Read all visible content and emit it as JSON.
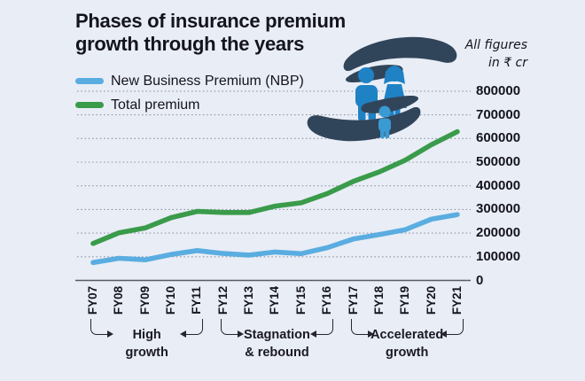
{
  "title": {
    "line1": "Phases of insurance premium",
    "line2": "growth through the years"
  },
  "unit_note": {
    "line1": "All figures",
    "line2": "in ₹ cr"
  },
  "legend": {
    "items": [
      {
        "label": "New Business Premium (NBP)",
        "color": "#5aade0"
      },
      {
        "label": "Total premium",
        "color": "#3a9b4a"
      }
    ]
  },
  "icon": {
    "name": "hands-protecting-family",
    "hand_color": "#31455a",
    "adult_color": "#1f82c5",
    "child_color": "#3a9ad2"
  },
  "chart_data": {
    "type": "line",
    "title": "Phases of insurance premium growth through the years",
    "unit": "₹ cr",
    "categories": [
      "FY07",
      "FY08",
      "FY09",
      "FY10",
      "FY11",
      "FY12",
      "FY13",
      "FY14",
      "FY15",
      "FY16",
      "FY17",
      "FY18",
      "FY19",
      "FY20",
      "FY21"
    ],
    "series": [
      {
        "name": "New Business Premium (NBP)",
        "color": "#5aade0",
        "values": [
          75600,
          93700,
          87300,
          109900,
          126400,
          113900,
          107000,
          120300,
          113100,
          138700,
          175000,
          193900,
          214700,
          258900,
          278300
        ]
      },
      {
        "name": "Total premium",
        "color": "#3a9b4a",
        "values": [
          156100,
          201400,
          221800,
          265400,
          291600,
          287100,
          287200,
          314300,
          328100,
          366900,
          418500,
          458800,
          508100,
          573300,
          628700
        ]
      }
    ],
    "ylim": [
      0,
      800000
    ],
    "yticks": [
      0,
      100000,
      200000,
      300000,
      400000,
      500000,
      600000,
      700000,
      800000
    ],
    "ytick_labels": [
      "0",
      "100000",
      "200000",
      "300000",
      "400000",
      "500000",
      "600000",
      "700000",
      "800000"
    ],
    "grid": "dotted-horizontal",
    "legend_position": "top-left",
    "colors": {
      "background": "#e9edf6",
      "gridline": "#8d93a3",
      "baseline": "#565b64",
      "text": "#15151e"
    }
  },
  "phases": [
    {
      "line1": "High",
      "line2": "growth",
      "from": "FY07",
      "to": "FY11"
    },
    {
      "line1": "Stagnation",
      "line2": "& rebound",
      "from": "FY12",
      "to": "FY16"
    },
    {
      "line1": "Accelerated",
      "line2": "growth",
      "from": "FY17",
      "to": "FY21"
    }
  ]
}
